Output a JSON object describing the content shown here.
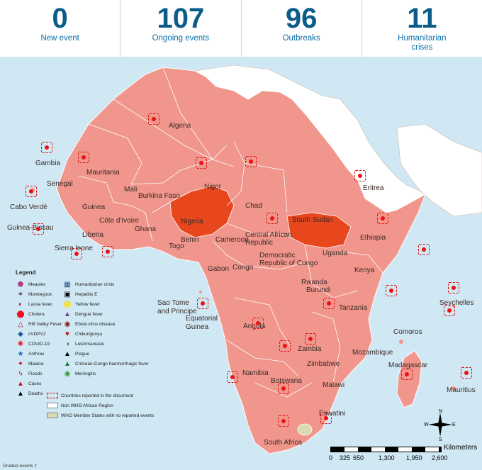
{
  "stats": [
    {
      "value": "0",
      "label": "New event"
    },
    {
      "value": "107",
      "label": "Ongoing events"
    },
    {
      "value": "96",
      "label": "Outbreaks"
    },
    {
      "value": "11",
      "label": "Humanitarian crises"
    }
  ],
  "countries": {
    "algeria": "Algeria",
    "mauritania": "Mauritania",
    "mali": "Mali",
    "niger": "Niger",
    "chad": "Chad",
    "gambia": "Gambia",
    "senegal": "Senegal",
    "cabo_verde": "Cabo Verdé",
    "guinea_bissau": "Guinea-Bissau",
    "guinea": "Guinea",
    "sierra_leone": "Sierra leone",
    "liberia": "Liberia",
    "cote_divoire": "Côte d'Ivoire",
    "burkina_faso": "Burkina Faso",
    "ghana": "Ghana",
    "togo": "Togo",
    "benin": "Benin",
    "nigeria": "Nigeria",
    "cameroon": "Cameroon",
    "car": "Central African Republic",
    "south_sudan": "South Sudan",
    "eritrea": "Eritrea",
    "ethiopia": "Ethiopia",
    "uganda": "Uganda",
    "kenya": "Kenya",
    "drc": "Democratic Republic of Congo",
    "congo": "Congo",
    "gabon": "Gabon",
    "sao_tome": "Sao Tome and Principe",
    "eq_guinea": "Equatorial Guinea",
    "rwanda": "Rwanda",
    "burundi": "Burundi",
    "tanzania": "Tanzania",
    "seychelles": "Seychelles",
    "angola": "Angola",
    "zambia": "Zambia",
    "malawi": "Malawi",
    "mozambique": "Mozambique",
    "comoros": "Comoros",
    "madagascar": "Madagascar",
    "mauritius": "Mauritius",
    "zimbabwe": "Zimbabwe",
    "namibia": "Namibia",
    "botswana": "Botswana",
    "eswatini": "Eswatini",
    "south_africa": "South Africa"
  },
  "legend": {
    "title": "Legend",
    "left": [
      "Measles",
      "Monkeypox",
      "Lassa fever",
      "Cholera",
      "Rift Valley Fever",
      "cVDPV2",
      "COVID-19",
      "Anthrax",
      "Malaria",
      "Floods",
      "Cases",
      "Deaths"
    ],
    "right": [
      "Humanitarian crisis",
      "Hepatitis E",
      "Yellow fever",
      "Dengue fever",
      "Ebola virus disease",
      "Chikungunya",
      "Leishmaniasis",
      "Plague",
      "Crimean-Congo haemorrhagic fever",
      "Meningitis"
    ],
    "bottom": [
      "Countries reported in the document",
      "Non WHO African Region",
      "WHO Member States with no reported events"
    ]
  },
  "footer": {
    "graded": "Graded events †"
  },
  "scale": {
    "labels": [
      "0",
      "325",
      "650",
      "1,300",
      "1,950",
      "2,600"
    ],
    "unit": "Kilometers"
  },
  "compass": {
    "n": "N",
    "s": "S",
    "e": "E",
    "w": "W"
  },
  "colors": {
    "country": "#f0968c",
    "highlight": "#e8461c",
    "non_who": "#ffffff",
    "ocean": "#cfe8f3",
    "no_events": "#d9dcb0"
  }
}
